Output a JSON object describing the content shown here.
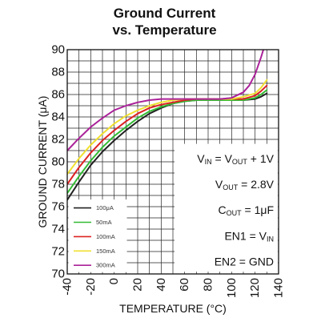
{
  "chart_data": {
    "type": "line",
    "title": [
      "Ground Current",
      "vs. Temperature"
    ],
    "xlabel": "TEMPERATURE (°C)",
    "ylabel": "GROUND CURRENT (μA)",
    "xlim": [
      -40,
      140
    ],
    "ylim": [
      70,
      90
    ],
    "x_ticks": [
      -40,
      -20,
      0,
      20,
      40,
      60,
      80,
      100,
      120,
      140
    ],
    "y_ticks": [
      70,
      72,
      74,
      76,
      78,
      80,
      82,
      84,
      86,
      88,
      90
    ],
    "grid": true,
    "legend_position": "bottom-left",
    "annotations": [
      [
        "V",
        "IN",
        " = V",
        "OUT",
        " + 1V"
      ],
      [
        "V",
        "OUT",
        " = 2.8V"
      ],
      [
        "C",
        "OUT",
        " = 1μF"
      ],
      [
        "EN1 = V",
        "IN",
        ""
      ],
      [
        "EN2 = GND"
      ]
    ],
    "series": [
      {
        "name": "100μA",
        "color": "#222222",
        "x": [
          -40,
          -30,
          -20,
          -10,
          0,
          10,
          20,
          30,
          40,
          50,
          60,
          70,
          80,
          90,
          100,
          110,
          120,
          125,
          130
        ],
        "y": [
          76.6,
          78.2,
          79.7,
          80.9,
          81.9,
          82.8,
          83.6,
          84.3,
          84.8,
          85.2,
          85.4,
          85.5,
          85.5,
          85.5,
          85.5,
          85.5,
          85.6,
          85.8,
          86.1
        ]
      },
      {
        "name": "50mA",
        "color": "#33bb33",
        "x": [
          -40,
          -30,
          -20,
          -10,
          0,
          10,
          20,
          30,
          40,
          50,
          60,
          70,
          80,
          90,
          100,
          110,
          120,
          125,
          130
        ],
        "y": [
          77.2,
          78.7,
          80.1,
          81.3,
          82.3,
          83.1,
          83.9,
          84.5,
          84.9,
          85.2,
          85.4,
          85.5,
          85.5,
          85.5,
          85.5,
          85.5,
          85.7,
          86.0,
          86.4
        ]
      },
      {
        "name": "100mA",
        "color": "#dd2222",
        "x": [
          -40,
          -30,
          -20,
          -10,
          0,
          10,
          20,
          30,
          40,
          50,
          60,
          70,
          80,
          90,
          100,
          110,
          120,
          125,
          130
        ],
        "y": [
          78.0,
          79.5,
          80.8,
          81.9,
          82.8,
          83.6,
          84.3,
          84.8,
          85.1,
          85.3,
          85.5,
          85.6,
          85.6,
          85.6,
          85.6,
          85.6,
          85.9,
          86.3,
          86.8
        ]
      },
      {
        "name": "150mA",
        "color": "#f0e030",
        "x": [
          -40,
          -30,
          -20,
          -10,
          0,
          10,
          20,
          30,
          40,
          50,
          60,
          70,
          80,
          90,
          100,
          110,
          120,
          125,
          130
        ],
        "y": [
          78.9,
          80.3,
          81.5,
          82.5,
          83.4,
          84.1,
          84.6,
          85.0,
          85.3,
          85.5,
          85.6,
          85.6,
          85.6,
          85.6,
          85.6,
          85.8,
          86.1,
          86.6,
          87.3
        ]
      },
      {
        "name": "300mA",
        "color": "#aa2299",
        "x": [
          -40,
          -30,
          -20,
          -10,
          0,
          10,
          20,
          30,
          40,
          50,
          60,
          70,
          80,
          90,
          100,
          110,
          115,
          120,
          125,
          130
        ],
        "y": [
          81.0,
          82.1,
          83.1,
          83.9,
          84.6,
          85.0,
          85.3,
          85.5,
          85.6,
          85.6,
          85.6,
          85.6,
          85.6,
          85.6,
          85.7,
          86.2,
          86.8,
          87.8,
          89.3,
          91.0
        ]
      }
    ]
  }
}
